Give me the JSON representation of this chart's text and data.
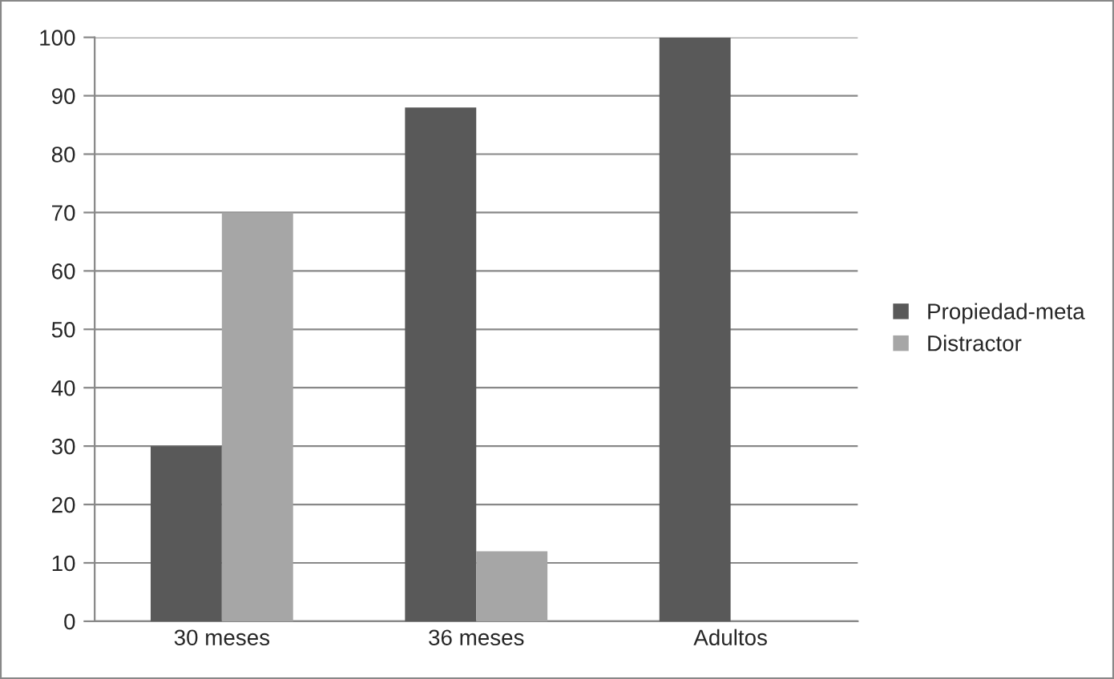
{
  "chart_data": {
    "type": "bar",
    "categories": [
      "30 meses",
      "36 meses",
      "Adultos"
    ],
    "series": [
      {
        "name": "Propiedad-meta",
        "color": "#595959",
        "values": [
          30,
          88,
          100
        ]
      },
      {
        "name": "Distractor",
        "color": "#a6a6a6",
        "values": [
          70,
          12,
          null
        ]
      }
    ],
    "ylim": [
      0,
      100
    ],
    "yticks": [
      0,
      10,
      20,
      30,
      40,
      50,
      60,
      70,
      80,
      90,
      100
    ],
    "grid": "y",
    "legend": "right"
  }
}
